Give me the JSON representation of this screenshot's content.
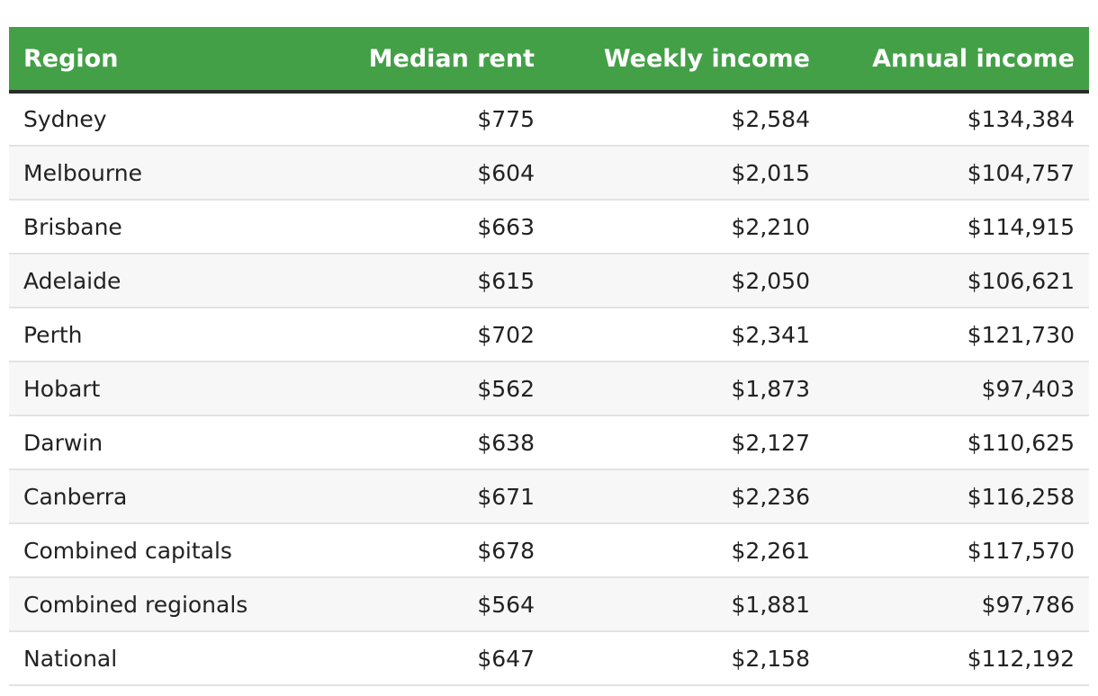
{
  "table": {
    "headers": {
      "region": "Region",
      "median_rent": "Median rent",
      "weekly_income": "Weekly income",
      "annual_income": "Annual income"
    },
    "rows": [
      {
        "region": "Sydney",
        "median_rent": "$775",
        "weekly_income": "$2,584",
        "annual_income": "$134,384"
      },
      {
        "region": "Melbourne",
        "median_rent": "$604",
        "weekly_income": "$2,015",
        "annual_income": "$104,757"
      },
      {
        "region": "Brisbane",
        "median_rent": "$663",
        "weekly_income": "$2,210",
        "annual_income": "$114,915"
      },
      {
        "region": "Adelaide",
        "median_rent": "$615",
        "weekly_income": "$2,050",
        "annual_income": "$106,621"
      },
      {
        "region": "Perth",
        "median_rent": "$702",
        "weekly_income": "$2,341",
        "annual_income": "$121,730"
      },
      {
        "region": "Hobart",
        "median_rent": "$562",
        "weekly_income": "$1,873",
        "annual_income": "$97,403"
      },
      {
        "region": "Darwin",
        "median_rent": "$638",
        "weekly_income": "$2,127",
        "annual_income": "$110,625"
      },
      {
        "region": "Canberra",
        "median_rent": "$671",
        "weekly_income": "$2,236",
        "annual_income": "$116,258"
      },
      {
        "region": "Combined capitals",
        "median_rent": "$678",
        "weekly_income": "$2,261",
        "annual_income": "$117,570"
      },
      {
        "region": "Combined regionals",
        "median_rent": "$564",
        "weekly_income": "$1,881",
        "annual_income": "$97,786"
      },
      {
        "region": "National",
        "median_rent": "$647",
        "weekly_income": "$2,158",
        "annual_income": "$112,192"
      }
    ]
  },
  "colors": {
    "header_background": "#43a047",
    "header_text": "#ffffff",
    "header_rule": "#2b2b2b",
    "row_alt_background": "#f7f7f7",
    "row_divider": "#e3e3e3"
  }
}
